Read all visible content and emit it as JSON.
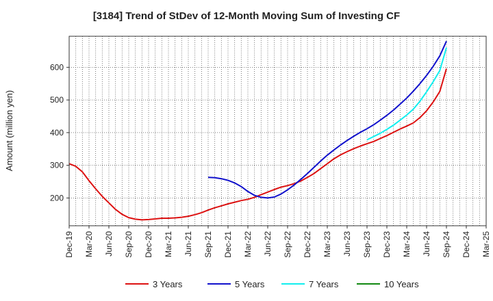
{
  "chart_data": {
    "type": "line",
    "title": "[3184]  Trend of StDev of 12-Month Moving Sum of Investing CF",
    "ylabel": "Amount (million yen)",
    "xlabel": "",
    "ylim": [
      115,
      695
    ],
    "yticks": [
      200,
      300,
      400,
      500,
      600
    ],
    "x_range": [
      "2019-12",
      "2025-03"
    ],
    "x_ticks": [
      "Dec-19",
      "Mar-20",
      "Jun-20",
      "Sep-20",
      "Dec-20",
      "Mar-21",
      "Jun-21",
      "Sep-21",
      "Dec-21",
      "Mar-22",
      "Jun-22",
      "Sep-22",
      "Dec-22",
      "Mar-23",
      "Jun-23",
      "Sep-23",
      "Dec-23",
      "Mar-24",
      "Jun-24",
      "Sep-24",
      "Dec-24",
      "Mar-25"
    ],
    "grid": true,
    "legend_position": "bottom",
    "series": [
      {
        "name": "3 Years",
        "color": "#dd1111",
        "points": [
          [
            "2019-12",
            305
          ],
          [
            "2020-01",
            297
          ],
          [
            "2020-02",
            280
          ],
          [
            "2020-03",
            253
          ],
          [
            "2020-04",
            228
          ],
          [
            "2020-05",
            205
          ],
          [
            "2020-06",
            185
          ],
          [
            "2020-07",
            165
          ],
          [
            "2020-08",
            150
          ],
          [
            "2020-09",
            140
          ],
          [
            "2020-10",
            135
          ],
          [
            "2020-11",
            133
          ],
          [
            "2020-12",
            134
          ],
          [
            "2021-01",
            136
          ],
          [
            "2021-02",
            138
          ],
          [
            "2021-03",
            138
          ],
          [
            "2021-04",
            139
          ],
          [
            "2021-05",
            141
          ],
          [
            "2021-06",
            144
          ],
          [
            "2021-07",
            149
          ],
          [
            "2021-08",
            155
          ],
          [
            "2021-09",
            163
          ],
          [
            "2021-10",
            170
          ],
          [
            "2021-11",
            176
          ],
          [
            "2021-12",
            182
          ],
          [
            "2022-01",
            187
          ],
          [
            "2022-02",
            192
          ],
          [
            "2022-03",
            196
          ],
          [
            "2022-04",
            202
          ],
          [
            "2022-05",
            210
          ],
          [
            "2022-06",
            218
          ],
          [
            "2022-07",
            226
          ],
          [
            "2022-08",
            233
          ],
          [
            "2022-09",
            238
          ],
          [
            "2022-10",
            244
          ],
          [
            "2022-11",
            252
          ],
          [
            "2022-12",
            263
          ],
          [
            "2023-01",
            275
          ],
          [
            "2023-02",
            290
          ],
          [
            "2023-03",
            305
          ],
          [
            "2023-04",
            320
          ],
          [
            "2023-05",
            332
          ],
          [
            "2023-06",
            342
          ],
          [
            "2023-07",
            351
          ],
          [
            "2023-08",
            359
          ],
          [
            "2023-09",
            366
          ],
          [
            "2023-10",
            373
          ],
          [
            "2023-11",
            382
          ],
          [
            "2023-12",
            391
          ],
          [
            "2024-01",
            401
          ],
          [
            "2024-02",
            411
          ],
          [
            "2024-03",
            420
          ],
          [
            "2024-04",
            430
          ],
          [
            "2024-05",
            446
          ],
          [
            "2024-06",
            467
          ],
          [
            "2024-07",
            494
          ],
          [
            "2024-08",
            526
          ],
          [
            "2024-09",
            596
          ]
        ]
      },
      {
        "name": "5 Years",
        "color": "#1111cc",
        "points": [
          [
            "2021-09",
            263
          ],
          [
            "2021-10",
            262
          ],
          [
            "2021-11",
            259
          ],
          [
            "2021-12",
            254
          ],
          [
            "2022-01",
            246
          ],
          [
            "2022-02",
            235
          ],
          [
            "2022-03",
            220
          ],
          [
            "2022-04",
            208
          ],
          [
            "2022-05",
            202
          ],
          [
            "2022-06",
            200
          ],
          [
            "2022-07",
            203
          ],
          [
            "2022-08",
            212
          ],
          [
            "2022-09",
            225
          ],
          [
            "2022-10",
            240
          ],
          [
            "2022-11",
            257
          ],
          [
            "2022-12",
            275
          ],
          [
            "2023-01",
            294
          ],
          [
            "2023-02",
            313
          ],
          [
            "2023-03",
            331
          ],
          [
            "2023-04",
            347
          ],
          [
            "2023-05",
            362
          ],
          [
            "2023-06",
            376
          ],
          [
            "2023-07",
            389
          ],
          [
            "2023-08",
            401
          ],
          [
            "2023-09",
            412
          ],
          [
            "2023-10",
            424
          ],
          [
            "2023-11",
            438
          ],
          [
            "2023-12",
            453
          ],
          [
            "2024-01",
            469
          ],
          [
            "2024-02",
            487
          ],
          [
            "2024-03",
            506
          ],
          [
            "2024-04",
            527
          ],
          [
            "2024-05",
            550
          ],
          [
            "2024-06",
            575
          ],
          [
            "2024-07",
            603
          ],
          [
            "2024-08",
            635
          ],
          [
            "2024-09",
            680
          ]
        ]
      },
      {
        "name": "7 Years",
        "color": "#11eeee",
        "points": [
          [
            "2023-09",
            378
          ],
          [
            "2023-10",
            388
          ],
          [
            "2023-11",
            398
          ],
          [
            "2023-12",
            410
          ],
          [
            "2024-01",
            423
          ],
          [
            "2024-02",
            438
          ],
          [
            "2024-03",
            454
          ],
          [
            "2024-04",
            472
          ],
          [
            "2024-05",
            496
          ],
          [
            "2024-06",
            525
          ],
          [
            "2024-07",
            556
          ],
          [
            "2024-08",
            590
          ],
          [
            "2024-09",
            660
          ]
        ]
      },
      {
        "name": "10 Years",
        "color": "#118811",
        "points": []
      }
    ]
  }
}
